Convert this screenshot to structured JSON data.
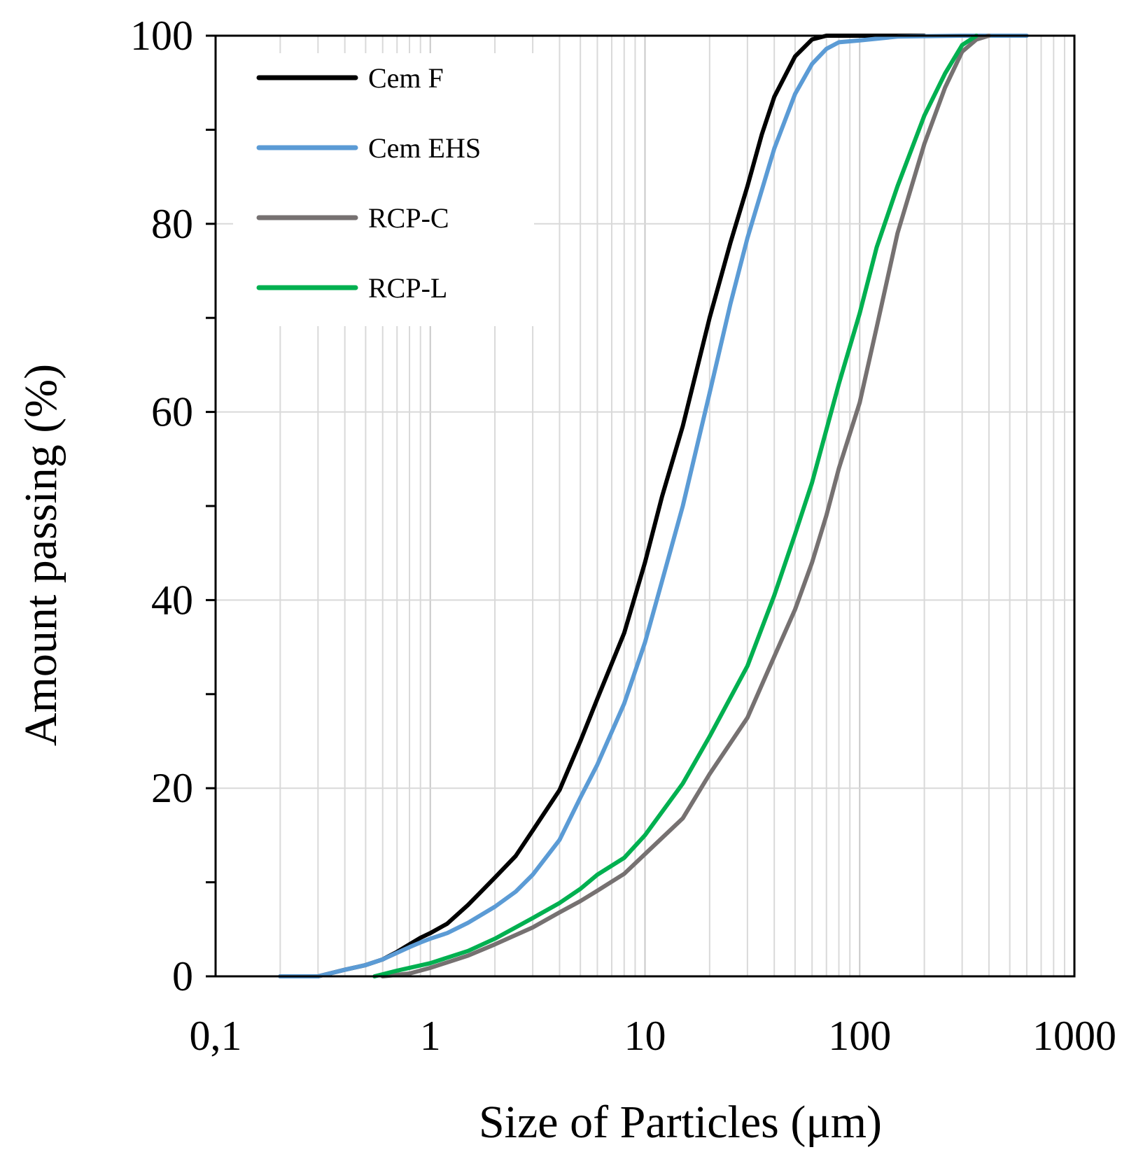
{
  "chart_data": {
    "type": "line",
    "xscale": "log",
    "xlim": [
      0.1,
      1000
    ],
    "ylim": [
      0,
      100
    ],
    "xlabel": "Size of Particles  (μm)",
    "ylabel": "Amount passing (%)",
    "xticks": [
      {
        "value": 0.1,
        "label": "0,1"
      },
      {
        "value": 1,
        "label": "1"
      },
      {
        "value": 10,
        "label": "10"
      },
      {
        "value": 100,
        "label": "100"
      },
      {
        "value": 1000,
        "label": "1000"
      }
    ],
    "yticks": [
      {
        "value": 0,
        "label": "0"
      },
      {
        "value": 20,
        "label": "20"
      },
      {
        "value": 40,
        "label": "40"
      },
      {
        "value": 60,
        "label": "60"
      },
      {
        "value": 80,
        "label": "80"
      },
      {
        "value": 100,
        "label": "100"
      }
    ],
    "grid": true,
    "legend_position": "top-left",
    "series": [
      {
        "name": "Cem F",
        "color": "#000000",
        "points": [
          [
            0.2,
            0
          ],
          [
            0.3,
            0
          ],
          [
            0.4,
            0.7
          ],
          [
            0.5,
            1.2
          ],
          [
            0.6,
            1.8
          ],
          [
            0.7,
            2.6
          ],
          [
            0.8,
            3.4
          ],
          [
            0.9,
            4.1
          ],
          [
            1.0,
            4.6
          ],
          [
            1.2,
            5.6
          ],
          [
            1.5,
            7.6
          ],
          [
            2.0,
            10.5
          ],
          [
            2.5,
            12.8
          ],
          [
            3.0,
            15.5
          ],
          [
            4.0,
            19.8
          ],
          [
            5.0,
            25
          ],
          [
            6.0,
            29.5
          ],
          [
            8.0,
            36.5
          ],
          [
            10.0,
            44
          ],
          [
            12.0,
            51
          ],
          [
            15.0,
            58.5
          ],
          [
            20.0,
            70
          ],
          [
            25.0,
            78
          ],
          [
            30.0,
            84
          ],
          [
            35.0,
            89.5
          ],
          [
            40.0,
            93.5
          ],
          [
            50.0,
            97.8
          ],
          [
            60.0,
            99.6
          ],
          [
            70.0,
            100
          ],
          [
            100,
            100
          ],
          [
            200,
            100
          ]
        ]
      },
      {
        "name": "Cem EHS",
        "color": "#5b9bd5",
        "points": [
          [
            0.2,
            0
          ],
          [
            0.3,
            0
          ],
          [
            0.4,
            0.7
          ],
          [
            0.5,
            1.2
          ],
          [
            0.6,
            1.8
          ],
          [
            0.7,
            2.5
          ],
          [
            0.8,
            3.1
          ],
          [
            0.9,
            3.6
          ],
          [
            1.0,
            4.0
          ],
          [
            1.2,
            4.6
          ],
          [
            1.5,
            5.7
          ],
          [
            2.0,
            7.4
          ],
          [
            2.5,
            9.0
          ],
          [
            3.0,
            10.8
          ],
          [
            4.0,
            14.5
          ],
          [
            5.0,
            19
          ],
          [
            6.0,
            22.5
          ],
          [
            8.0,
            29
          ],
          [
            10.0,
            35.5
          ],
          [
            12.0,
            42
          ],
          [
            15.0,
            50
          ],
          [
            20.0,
            62
          ],
          [
            25.0,
            71.5
          ],
          [
            30.0,
            78.5
          ],
          [
            40.0,
            88
          ],
          [
            50.0,
            93.8
          ],
          [
            60.0,
            97
          ],
          [
            70.0,
            98.6
          ],
          [
            80.0,
            99.3
          ],
          [
            100,
            99.5
          ],
          [
            150,
            99.9
          ],
          [
            300,
            100
          ],
          [
            600,
            100
          ]
        ]
      },
      {
        "name": "RCP-C",
        "color": "#767171",
        "points": [
          [
            0.6,
            0
          ],
          [
            0.8,
            0.3
          ],
          [
            1.0,
            0.9
          ],
          [
            1.5,
            2.2
          ],
          [
            2.0,
            3.4
          ],
          [
            3.0,
            5.2
          ],
          [
            4.0,
            6.8
          ],
          [
            5.0,
            8.0
          ],
          [
            6.0,
            9.1
          ],
          [
            8.0,
            10.9
          ],
          [
            10.0,
            13.0
          ],
          [
            15.0,
            16.8
          ],
          [
            20.0,
            21.5
          ],
          [
            30.0,
            27.5
          ],
          [
            40.0,
            34
          ],
          [
            50.0,
            39
          ],
          [
            60.0,
            44
          ],
          [
            70.0,
            49
          ],
          [
            80.0,
            54
          ],
          [
            100,
            61
          ],
          [
            120,
            69
          ],
          [
            150,
            79
          ],
          [
            200,
            88.5
          ],
          [
            250,
            94.5
          ],
          [
            300,
            98.3
          ],
          [
            350,
            99.6
          ],
          [
            400,
            100
          ]
        ]
      },
      {
        "name": "RCP-L",
        "color": "#00b050",
        "points": [
          [
            0.55,
            0
          ],
          [
            0.7,
            0.6
          ],
          [
            1.0,
            1.4
          ],
          [
            1.5,
            2.7
          ],
          [
            2.0,
            4.0
          ],
          [
            3.0,
            6.2
          ],
          [
            4.0,
            7.8
          ],
          [
            5.0,
            9.3
          ],
          [
            6.0,
            10.8
          ],
          [
            8.0,
            12.6
          ],
          [
            10.0,
            15
          ],
          [
            15.0,
            20.5
          ],
          [
            20.0,
            25.5
          ],
          [
            30.0,
            33
          ],
          [
            40.0,
            40.5
          ],
          [
            50.0,
            47
          ],
          [
            60.0,
            52.5
          ],
          [
            80.0,
            63
          ],
          [
            100,
            70.5
          ],
          [
            120,
            77.5
          ],
          [
            150,
            84
          ],
          [
            200,
            91.5
          ],
          [
            250,
            96
          ],
          [
            300,
            99
          ],
          [
            350,
            100
          ]
        ]
      }
    ]
  }
}
